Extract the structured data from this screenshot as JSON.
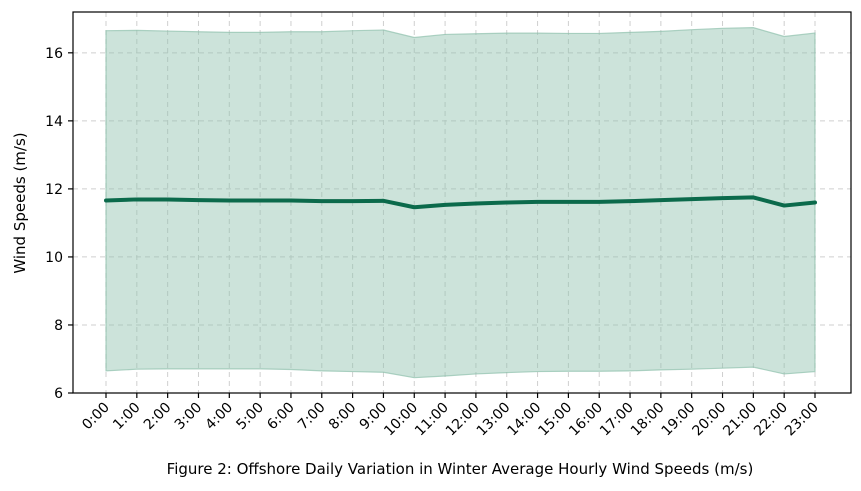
{
  "chart_data": {
    "type": "line",
    "title": "",
    "xlabel": "Figure 2: Offshore Daily Variation in Winter Average Hourly Wind Speeds (m/s)",
    "ylabel": "Wind Speeds (m/s)",
    "categories": [
      "0:00",
      "1:00",
      "2:00",
      "3:00",
      "4:00",
      "5:00",
      "6:00",
      "7:00",
      "8:00",
      "9:00",
      "10:00",
      "11:00",
      "12:00",
      "13:00",
      "14:00",
      "15:00",
      "16:00",
      "17:00",
      "18:00",
      "19:00",
      "20:00",
      "21:00",
      "22:00",
      "23:00"
    ],
    "series": [
      {
        "values": [
          11.66,
          11.69,
          11.69,
          11.67,
          11.66,
          11.66,
          11.66,
          11.64,
          11.64,
          11.65,
          11.46,
          11.53,
          11.57,
          11.6,
          11.62,
          11.62,
          11.62,
          11.64,
          11.67,
          11.7,
          11.73,
          11.75,
          11.51,
          11.6
        ],
        "color": "#0b6a4b"
      }
    ],
    "band": {
      "upper": [
        16.65,
        16.66,
        16.64,
        16.62,
        16.6,
        16.6,
        16.62,
        16.62,
        16.65,
        16.67,
        16.45,
        16.54,
        16.56,
        16.58,
        16.58,
        16.57,
        16.57,
        16.6,
        16.63,
        16.68,
        16.72,
        16.74,
        16.48,
        16.58
      ],
      "lower": [
        6.65,
        6.7,
        6.71,
        6.71,
        6.71,
        6.71,
        6.69,
        6.65,
        6.63,
        6.61,
        6.45,
        6.5,
        6.56,
        6.6,
        6.63,
        6.64,
        6.64,
        6.65,
        6.68,
        6.7,
        6.73,
        6.76,
        6.56,
        6.63
      ],
      "color": "#8fc0ad"
    },
    "ylim": [
      6,
      17.2
    ],
    "yticks": [
      6,
      8,
      10,
      12,
      14,
      16
    ],
    "grid": true
  }
}
